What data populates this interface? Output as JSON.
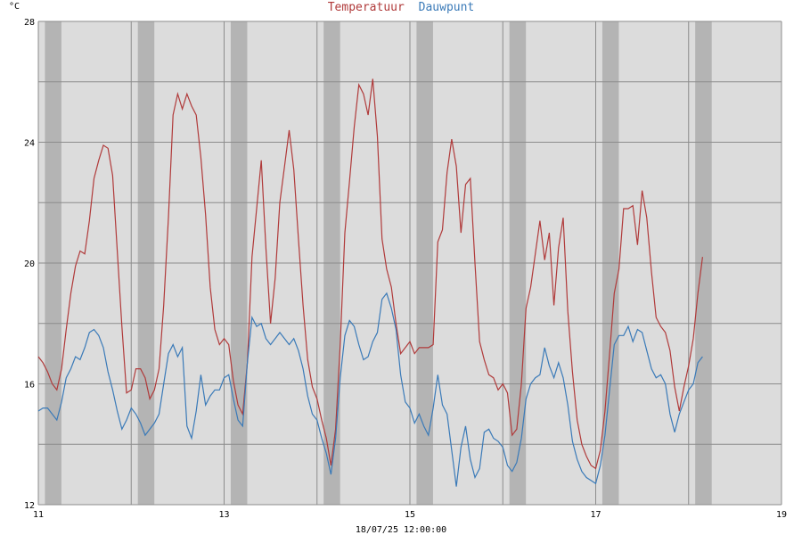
{
  "chart_data": {
    "type": "line",
    "title_parts": [
      {
        "text": "Temperatuur",
        "color": "#b03a3a"
      },
      {
        "text": "Dauwpunt",
        "color": "#3a7ab8"
      }
    ],
    "ylabel": "°C",
    "footer": "18/07/25 12:00:00",
    "ylim": [
      12,
      28
    ],
    "xlim": [
      11,
      19
    ],
    "x_ticks": [
      "11",
      "13",
      "15",
      "17",
      "19"
    ],
    "x_tick_values": [
      11,
      13,
      15,
      17,
      19
    ],
    "y_ticks": [
      "12",
      "16",
      "20",
      "24",
      "28"
    ],
    "y_tick_values": [
      12,
      16,
      20,
      24,
      28
    ],
    "y_gridlines": [
      12,
      14,
      16,
      18,
      20,
      22,
      24,
      26,
      28
    ],
    "night_bands": [
      [
        11.1,
        11.22
      ],
      [
        12.1,
        12.22
      ],
      [
        13.1,
        13.22
      ],
      [
        14.1,
        14.22
      ],
      [
        15.1,
        15.22
      ],
      [
        16.1,
        16.22
      ],
      [
        17.1,
        17.22
      ],
      [
        18.1,
        18.22
      ]
    ],
    "background": "#dcdcdc",
    "band_color": "#b4b4b4",
    "series": [
      {
        "name": "Temperatuur",
        "color": "#b03a3a",
        "points": [
          [
            11.0,
            16.9
          ],
          [
            11.05,
            16.7
          ],
          [
            11.1,
            16.4
          ],
          [
            11.15,
            16.0
          ],
          [
            11.2,
            15.8
          ],
          [
            11.25,
            16.5
          ],
          [
            11.3,
            17.8
          ],
          [
            11.35,
            19.0
          ],
          [
            11.4,
            19.9
          ],
          [
            11.45,
            20.4
          ],
          [
            11.5,
            20.3
          ],
          [
            11.55,
            21.4
          ],
          [
            11.6,
            22.8
          ],
          [
            11.65,
            23.4
          ],
          [
            11.7,
            23.9
          ],
          [
            11.75,
            23.8
          ],
          [
            11.8,
            22.9
          ],
          [
            11.85,
            20.4
          ],
          [
            11.9,
            17.9
          ],
          [
            11.95,
            15.7
          ],
          [
            12.0,
            15.8
          ],
          [
            12.05,
            16.5
          ],
          [
            12.1,
            16.5
          ],
          [
            12.15,
            16.2
          ],
          [
            12.2,
            15.5
          ],
          [
            12.25,
            15.8
          ],
          [
            12.3,
            16.5
          ],
          [
            12.35,
            18.6
          ],
          [
            12.4,
            21.5
          ],
          [
            12.45,
            24.9
          ],
          [
            12.5,
            25.6
          ],
          [
            12.55,
            25.1
          ],
          [
            12.6,
            25.6
          ],
          [
            12.65,
            25.2
          ],
          [
            12.7,
            24.9
          ],
          [
            12.75,
            23.5
          ],
          [
            12.8,
            21.6
          ],
          [
            12.85,
            19.2
          ],
          [
            12.9,
            17.8
          ],
          [
            12.95,
            17.3
          ],
          [
            13.0,
            17.5
          ],
          [
            13.05,
            17.3
          ],
          [
            13.1,
            16.1
          ],
          [
            13.15,
            15.3
          ],
          [
            13.2,
            15.0
          ],
          [
            13.25,
            16.7
          ],
          [
            13.3,
            20.2
          ],
          [
            13.35,
            21.8
          ],
          [
            13.4,
            23.4
          ],
          [
            13.45,
            20.5
          ],
          [
            13.5,
            18.0
          ],
          [
            13.55,
            19.5
          ],
          [
            13.6,
            22.0
          ],
          [
            13.65,
            23.2
          ],
          [
            13.7,
            24.4
          ],
          [
            13.75,
            23.1
          ],
          [
            13.8,
            20.8
          ],
          [
            13.85,
            18.6
          ],
          [
            13.9,
            16.8
          ],
          [
            13.95,
            15.9
          ],
          [
            14.0,
            15.5
          ],
          [
            14.05,
            14.8
          ],
          [
            14.1,
            14.2
          ],
          [
            14.15,
            13.3
          ],
          [
            14.2,
            14.5
          ],
          [
            14.25,
            17.3
          ],
          [
            14.3,
            21.0
          ],
          [
            14.35,
            22.7
          ],
          [
            14.4,
            24.5
          ],
          [
            14.45,
            25.9
          ],
          [
            14.5,
            25.6
          ],
          [
            14.55,
            24.9
          ],
          [
            14.6,
            26.1
          ],
          [
            14.65,
            24.2
          ],
          [
            14.7,
            20.8
          ],
          [
            14.75,
            19.8
          ],
          [
            14.8,
            19.2
          ],
          [
            14.85,
            18.0
          ],
          [
            14.9,
            17.0
          ],
          [
            14.95,
            17.2
          ],
          [
            15.0,
            17.4
          ],
          [
            15.05,
            17.0
          ],
          [
            15.1,
            17.2
          ],
          [
            15.15,
            17.2
          ],
          [
            15.2,
            17.2
          ],
          [
            15.25,
            17.3
          ],
          [
            15.3,
            20.7
          ],
          [
            15.35,
            21.1
          ],
          [
            15.4,
            23.0
          ],
          [
            15.45,
            24.1
          ],
          [
            15.5,
            23.2
          ],
          [
            15.55,
            21.0
          ],
          [
            15.6,
            22.6
          ],
          [
            15.65,
            22.8
          ],
          [
            15.7,
            20.0
          ],
          [
            15.75,
            17.4
          ],
          [
            15.8,
            16.8
          ],
          [
            15.85,
            16.3
          ],
          [
            15.9,
            16.2
          ],
          [
            15.95,
            15.8
          ],
          [
            16.0,
            16.0
          ],
          [
            16.05,
            15.7
          ],
          [
            16.1,
            14.3
          ],
          [
            16.15,
            14.5
          ],
          [
            16.2,
            16.0
          ],
          [
            16.25,
            18.5
          ],
          [
            16.3,
            19.2
          ],
          [
            16.35,
            20.3
          ],
          [
            16.4,
            21.4
          ],
          [
            16.45,
            20.1
          ],
          [
            16.5,
            21.0
          ],
          [
            16.55,
            18.6
          ],
          [
            16.6,
            20.5
          ],
          [
            16.65,
            21.5
          ],
          [
            16.7,
            18.4
          ],
          [
            16.75,
            16.4
          ],
          [
            16.8,
            14.8
          ],
          [
            16.85,
            14.0
          ],
          [
            16.9,
            13.6
          ],
          [
            16.95,
            13.3
          ],
          [
            17.0,
            13.2
          ],
          [
            17.05,
            13.8
          ],
          [
            17.1,
            15.1
          ],
          [
            17.15,
            17.0
          ],
          [
            17.2,
            19.0
          ],
          [
            17.25,
            19.8
          ],
          [
            17.3,
            21.8
          ],
          [
            17.35,
            21.8
          ],
          [
            17.4,
            21.9
          ],
          [
            17.45,
            20.6
          ],
          [
            17.5,
            22.4
          ],
          [
            17.55,
            21.5
          ],
          [
            17.6,
            19.7
          ],
          [
            17.65,
            18.2
          ],
          [
            17.7,
            17.9
          ],
          [
            17.75,
            17.7
          ],
          [
            17.8,
            17.1
          ],
          [
            17.85,
            15.9
          ],
          [
            17.9,
            15.1
          ],
          [
            17.95,
            15.9
          ],
          [
            18.0,
            16.6
          ],
          [
            18.05,
            17.5
          ],
          [
            18.1,
            19.0
          ],
          [
            18.15,
            20.2
          ]
        ]
      },
      {
        "name": "Dauwpunt",
        "color": "#3a7ab8",
        "points": [
          [
            11.0,
            15.1
          ],
          [
            11.05,
            15.2
          ],
          [
            11.1,
            15.2
          ],
          [
            11.15,
            15.0
          ],
          [
            11.2,
            14.8
          ],
          [
            11.25,
            15.4
          ],
          [
            11.3,
            16.2
          ],
          [
            11.35,
            16.5
          ],
          [
            11.4,
            16.9
          ],
          [
            11.45,
            16.8
          ],
          [
            11.5,
            17.2
          ],
          [
            11.55,
            17.7
          ],
          [
            11.6,
            17.8
          ],
          [
            11.65,
            17.6
          ],
          [
            11.7,
            17.2
          ],
          [
            11.75,
            16.4
          ],
          [
            11.8,
            15.8
          ],
          [
            11.85,
            15.1
          ],
          [
            11.9,
            14.5
          ],
          [
            11.95,
            14.8
          ],
          [
            12.0,
            15.2
          ],
          [
            12.05,
            15.0
          ],
          [
            12.1,
            14.7
          ],
          [
            12.15,
            14.3
          ],
          [
            12.2,
            14.5
          ],
          [
            12.25,
            14.7
          ],
          [
            12.3,
            15.0
          ],
          [
            12.35,
            16.0
          ],
          [
            12.4,
            17.0
          ],
          [
            12.45,
            17.3
          ],
          [
            12.5,
            16.9
          ],
          [
            12.55,
            17.2
          ],
          [
            12.6,
            14.6
          ],
          [
            12.65,
            14.2
          ],
          [
            12.7,
            15.1
          ],
          [
            12.75,
            16.3
          ],
          [
            12.8,
            15.3
          ],
          [
            12.85,
            15.6
          ],
          [
            12.9,
            15.8
          ],
          [
            12.95,
            15.8
          ],
          [
            13.0,
            16.2
          ],
          [
            13.05,
            16.3
          ],
          [
            13.1,
            15.5
          ],
          [
            13.15,
            14.8
          ],
          [
            13.2,
            14.6
          ],
          [
            13.25,
            16.7
          ],
          [
            13.3,
            18.2
          ],
          [
            13.35,
            17.9
          ],
          [
            13.4,
            18.0
          ],
          [
            13.45,
            17.5
          ],
          [
            13.5,
            17.3
          ],
          [
            13.55,
            17.5
          ],
          [
            13.6,
            17.7
          ],
          [
            13.65,
            17.5
          ],
          [
            13.7,
            17.3
          ],
          [
            13.75,
            17.5
          ],
          [
            13.8,
            17.1
          ],
          [
            13.85,
            16.5
          ],
          [
            13.9,
            15.6
          ],
          [
            13.95,
            15.0
          ],
          [
            14.0,
            14.8
          ],
          [
            14.05,
            14.2
          ],
          [
            14.1,
            13.7
          ],
          [
            14.15,
            13.0
          ],
          [
            14.2,
            14.2
          ],
          [
            14.25,
            16.2
          ],
          [
            14.3,
            17.6
          ],
          [
            14.35,
            18.1
          ],
          [
            14.4,
            17.9
          ],
          [
            14.45,
            17.3
          ],
          [
            14.5,
            16.8
          ],
          [
            14.55,
            16.9
          ],
          [
            14.6,
            17.4
          ],
          [
            14.65,
            17.7
          ],
          [
            14.7,
            18.8
          ],
          [
            14.75,
            19.0
          ],
          [
            14.8,
            18.5
          ],
          [
            14.85,
            17.8
          ],
          [
            14.9,
            16.3
          ],
          [
            14.95,
            15.4
          ],
          [
            15.0,
            15.2
          ],
          [
            15.05,
            14.7
          ],
          [
            15.1,
            15.0
          ],
          [
            15.15,
            14.6
          ],
          [
            15.2,
            14.3
          ],
          [
            15.25,
            15.2
          ],
          [
            15.3,
            16.3
          ],
          [
            15.35,
            15.3
          ],
          [
            15.4,
            15.0
          ],
          [
            15.45,
            13.8
          ],
          [
            15.5,
            12.6
          ],
          [
            15.55,
            13.9
          ],
          [
            15.6,
            14.6
          ],
          [
            15.65,
            13.5
          ],
          [
            15.7,
            12.9
          ],
          [
            15.75,
            13.2
          ],
          [
            15.8,
            14.4
          ],
          [
            15.85,
            14.5
          ],
          [
            15.9,
            14.2
          ],
          [
            15.95,
            14.1
          ],
          [
            16.0,
            13.9
          ],
          [
            16.05,
            13.3
          ],
          [
            16.1,
            13.1
          ],
          [
            16.15,
            13.4
          ],
          [
            16.2,
            14.2
          ],
          [
            16.25,
            15.5
          ],
          [
            16.3,
            16.0
          ],
          [
            16.35,
            16.2
          ],
          [
            16.4,
            16.3
          ],
          [
            16.45,
            17.2
          ],
          [
            16.5,
            16.6
          ],
          [
            16.55,
            16.2
          ],
          [
            16.6,
            16.7
          ],
          [
            16.65,
            16.2
          ],
          [
            16.7,
            15.3
          ],
          [
            16.75,
            14.1
          ],
          [
            16.8,
            13.5
          ],
          [
            16.85,
            13.1
          ],
          [
            16.9,
            12.9
          ],
          [
            16.95,
            12.8
          ],
          [
            17.0,
            12.7
          ],
          [
            17.05,
            13.3
          ],
          [
            17.1,
            14.3
          ],
          [
            17.15,
            15.8
          ],
          [
            17.2,
            17.3
          ],
          [
            17.25,
            17.6
          ],
          [
            17.3,
            17.6
          ],
          [
            17.35,
            17.9
          ],
          [
            17.4,
            17.4
          ],
          [
            17.45,
            17.8
          ],
          [
            17.5,
            17.7
          ],
          [
            17.55,
            17.1
          ],
          [
            17.6,
            16.5
          ],
          [
            17.65,
            16.2
          ],
          [
            17.7,
            16.3
          ],
          [
            17.75,
            16.0
          ],
          [
            17.8,
            15.0
          ],
          [
            17.85,
            14.4
          ],
          [
            17.9,
            15.0
          ],
          [
            17.95,
            15.4
          ],
          [
            18.0,
            15.8
          ],
          [
            18.05,
            16.0
          ],
          [
            18.1,
            16.7
          ],
          [
            18.15,
            16.9
          ]
        ]
      }
    ]
  }
}
